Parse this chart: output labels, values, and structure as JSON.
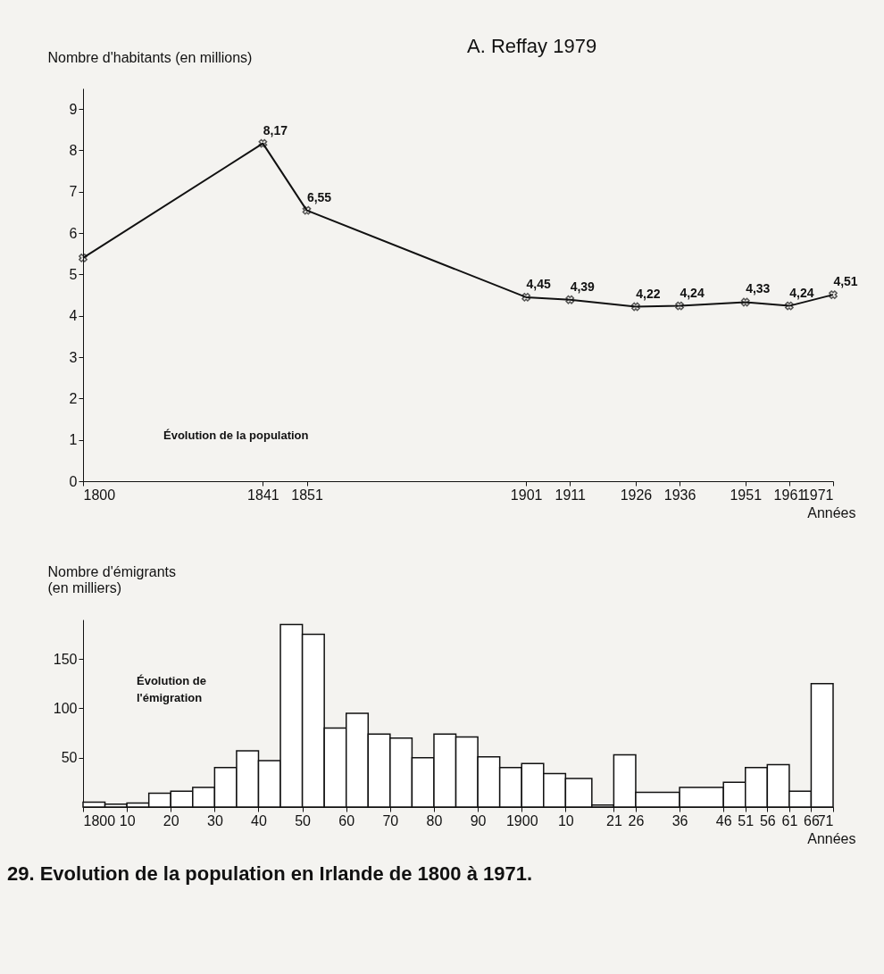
{
  "chart_data": [
    {
      "type": "line",
      "xlabel": "Années",
      "ylabel": "Nombre d'habitants (en millions)",
      "color": "#111111",
      "marker": "cross",
      "x": [
        1800,
        1841,
        1851,
        1901,
        1911,
        1926,
        1936,
        1951,
        1961,
        1971
      ],
      "values": [
        5.4,
        8.17,
        6.55,
        4.45,
        4.39,
        4.22,
        4.24,
        4.33,
        4.24,
        4.51
      ],
      "value_labels": [
        null,
        "8,17",
        "6,55",
        "4,45",
        "4,39",
        "4,22",
        "4,24",
        "4,33",
        "4,24",
        "4,51"
      ],
      "xlim": [
        1800,
        1971
      ],
      "xticks": [
        1800,
        1841,
        1851,
        1901,
        1911,
        1926,
        1936,
        1951,
        1961,
        1971
      ],
      "ylim": [
        0,
        9.5
      ],
      "yticks": [
        0,
        1,
        2,
        3,
        4,
        5,
        6,
        7,
        8,
        9
      ],
      "annotations": [
        "Évolution de la population",
        "A. Reffay 1979"
      ]
    },
    {
      "type": "histogram",
      "title": "29. Evolution de la population en Irlande de 1800 à 1971.",
      "xlabel": "Années",
      "ylabel": "Nombre d'émigrants\n(en milliers)",
      "color": "#ffffff",
      "bins": [
        1800,
        1805,
        1810,
        1815,
        1820,
        1825,
        1830,
        1835,
        1840,
        1845,
        1850,
        1855,
        1860,
        1865,
        1870,
        1875,
        1880,
        1885,
        1890,
        1895,
        1900,
        1905,
        1910,
        1916,
        1921,
        1926,
        1936,
        1946,
        1951,
        1956,
        1961,
        1966,
        1971
      ],
      "values": [
        5,
        3,
        4,
        14,
        16,
        20,
        40,
        57,
        47,
        185,
        175,
        80,
        95,
        74,
        70,
        50,
        74,
        71,
        51,
        40,
        44,
        34,
        29,
        2,
        53,
        15,
        20,
        25,
        40,
        43,
        16,
        125
      ],
      "xlim": [
        1800,
        1971
      ],
      "xticks": [
        1800,
        {
          "value": 1810,
          "label": "10"
        },
        {
          "value": 1820,
          "label": "20"
        },
        {
          "value": 1830,
          "label": "30"
        },
        {
          "value": 1840,
          "label": "40"
        },
        {
          "value": 1850,
          "label": "50"
        },
        {
          "value": 1860,
          "label": "60"
        },
        {
          "value": 1870,
          "label": "70"
        },
        {
          "value": 1880,
          "label": "80"
        },
        {
          "value": 1890,
          "label": "90"
        },
        1900,
        {
          "value": 1910,
          "label": "10"
        },
        {
          "value": 1921,
          "label": "21"
        },
        {
          "value": 1926,
          "label": "26"
        },
        {
          "value": 1936,
          "label": "36"
        },
        {
          "value": 1946,
          "label": "46"
        },
        {
          "value": 1951,
          "label": "51"
        },
        {
          "value": 1956,
          "label": "56"
        },
        {
          "value": 1961,
          "label": "61"
        },
        {
          "value": 1966,
          "label": "66"
        },
        {
          "value": 1971,
          "label": "71"
        }
      ],
      "ylim": [
        0,
        190
      ],
      "yticks": [
        50,
        100,
        150
      ],
      "annotations": [
        "Évolution de\nl'émigration"
      ]
    }
  ]
}
